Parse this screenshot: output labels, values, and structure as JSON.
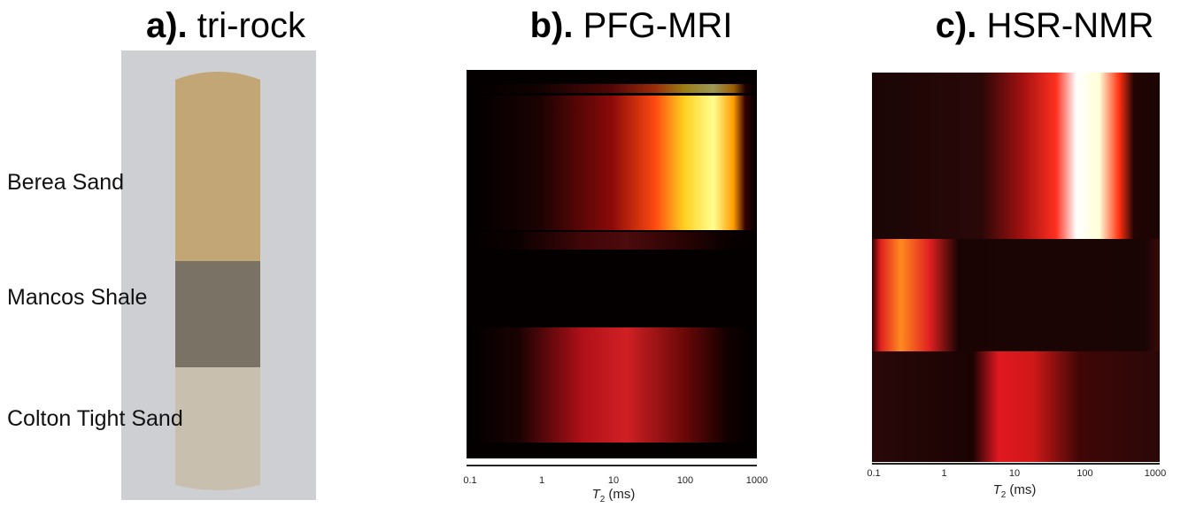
{
  "panels": [
    {
      "label": "a).",
      "title": "tri-rock",
      "samples": [
        "Berea Sand",
        "Mancos Shale",
        "Colton Tight Sand"
      ]
    },
    {
      "label": "b).",
      "title": "PFG-MRI",
      "xaxis": {
        "log": true,
        "xlim": [
          0.1,
          1000
        ],
        "ticks": [
          0.1,
          1,
          10,
          100,
          1000
        ],
        "symbol": "T",
        "subscript": "2",
        "unit": "(ms)"
      }
    },
    {
      "label": "c).",
      "title": "HSR-NMR",
      "xaxis": {
        "log": true,
        "xlim": [
          0.1,
          1000
        ],
        "ticks": [
          0.1,
          1,
          10,
          100,
          1000
        ],
        "symbol": "T",
        "subscript": "2",
        "unit": "(ms)"
      }
    }
  ]
}
